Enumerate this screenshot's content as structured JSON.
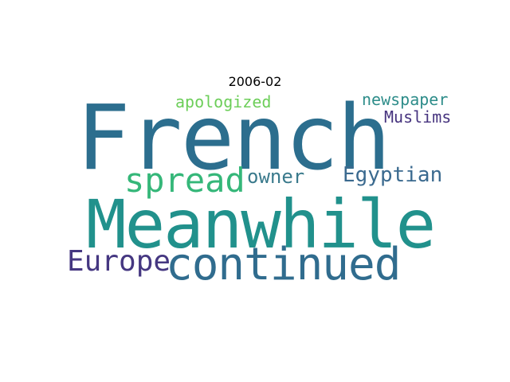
{
  "title": "2006-02",
  "words": {
    "french": {
      "text": "French",
      "color": "#2c6e8e"
    },
    "meanwhile": {
      "text": "Meanwhile",
      "color": "#21918c"
    },
    "continued": {
      "text": "continued",
      "color": "#306c8e"
    },
    "spread": {
      "text": "spread",
      "color": "#35b779"
    },
    "europe": {
      "text": "Europe",
      "color": "#453781"
    },
    "egyptian": {
      "text": "Egyptian",
      "color": "#3b6a8f"
    },
    "owner": {
      "text": "owner",
      "color": "#3a7a8c"
    },
    "apologized": {
      "text": "apologized",
      "color": "#6cce59"
    },
    "newspaper": {
      "text": "newspaper",
      "color": "#2e8d8a"
    },
    "muslims": {
      "text": "Muslims",
      "color": "#46337e"
    }
  }
}
